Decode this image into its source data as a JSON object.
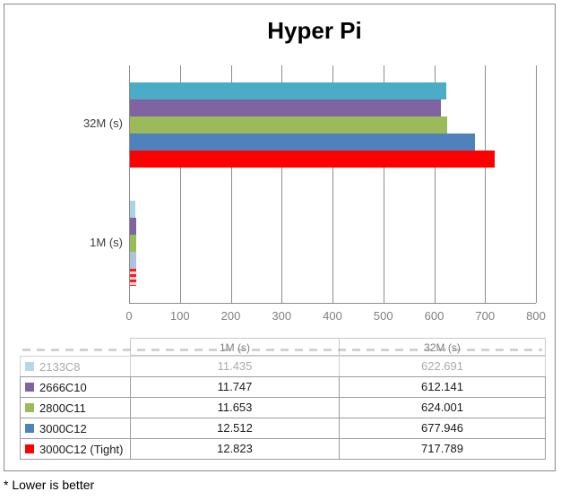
{
  "title": "Hyper Pi",
  "footnote": "* Lower is better",
  "chart_data": {
    "type": "bar",
    "orientation": "horizontal",
    "title": "Hyper Pi",
    "categories": [
      "32M (s)",
      "1M (s)"
    ],
    "series": [
      {
        "name": "2133C8",
        "color": "#4BACC6",
        "values": [
          622.691,
          11.435
        ]
      },
      {
        "name": "2666C10",
        "color": "#8064A2",
        "values": [
          612.141,
          11.747
        ]
      },
      {
        "name": "2800C11",
        "color": "#9BBB59",
        "values": [
          624.001,
          11.653
        ]
      },
      {
        "name": "3000C12",
        "color": "#4F81BD",
        "values": [
          677.946,
          12.512
        ]
      },
      {
        "name": "3000C12 (Tight)",
        "color": "#FF0000",
        "values": [
          717.789,
          12.823
        ]
      }
    ],
    "xlim": [
      0,
      800
    ],
    "x_ticks": [
      0,
      100,
      200,
      300,
      400,
      500,
      600,
      700,
      800
    ],
    "grid": true,
    "legend_position": "table-below-chart"
  },
  "table": {
    "columns": [
      "",
      "1M (s)",
      "32M (s)"
    ],
    "rows": [
      {
        "label": "2133C8",
        "swatch": "#4BACC6",
        "values": [
          "11.435",
          "622.691"
        ]
      },
      {
        "label": "2666C10",
        "swatch": "#8064A2",
        "values": [
          "11.747",
          "612.141"
        ]
      },
      {
        "label": "2800C11",
        "swatch": "#9BBB59",
        "values": [
          "11.653",
          "624.001"
        ]
      },
      {
        "label": "3000C12",
        "swatch": "#4F81BD",
        "values": [
          "12.512",
          "677.946"
        ]
      },
      {
        "label": "3000C12 (Tight)",
        "swatch": "#FF0000",
        "values": [
          "12.823",
          "717.789"
        ]
      }
    ]
  }
}
